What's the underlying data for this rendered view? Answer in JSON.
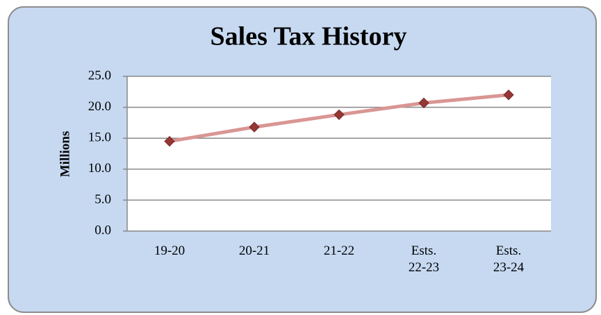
{
  "chart_data": {
    "type": "line",
    "title": "Sales Tax History",
    "y_label": "Millions",
    "categories": [
      "19-20",
      "20-21",
      "21-22",
      "Ests.\n22-23",
      "Ests.\n23-24"
    ],
    "series": [
      {
        "name": "Sales Tax",
        "color": "#d99694",
        "marker_color": "#953735",
        "values": [
          14.5,
          16.8,
          18.8,
          20.7,
          22.0
        ]
      }
    ],
    "ylim": [
      0,
      25
    ],
    "yticks": [
      {
        "value": 0,
        "label": "0.0"
      },
      {
        "value": 5,
        "label": "5.0"
      },
      {
        "value": 10,
        "label": "10.0"
      },
      {
        "value": 15,
        "label": "15.0"
      },
      {
        "value": 20,
        "label": "20.0"
      },
      {
        "value": 25,
        "label": "25.0"
      }
    ],
    "grid": true
  }
}
